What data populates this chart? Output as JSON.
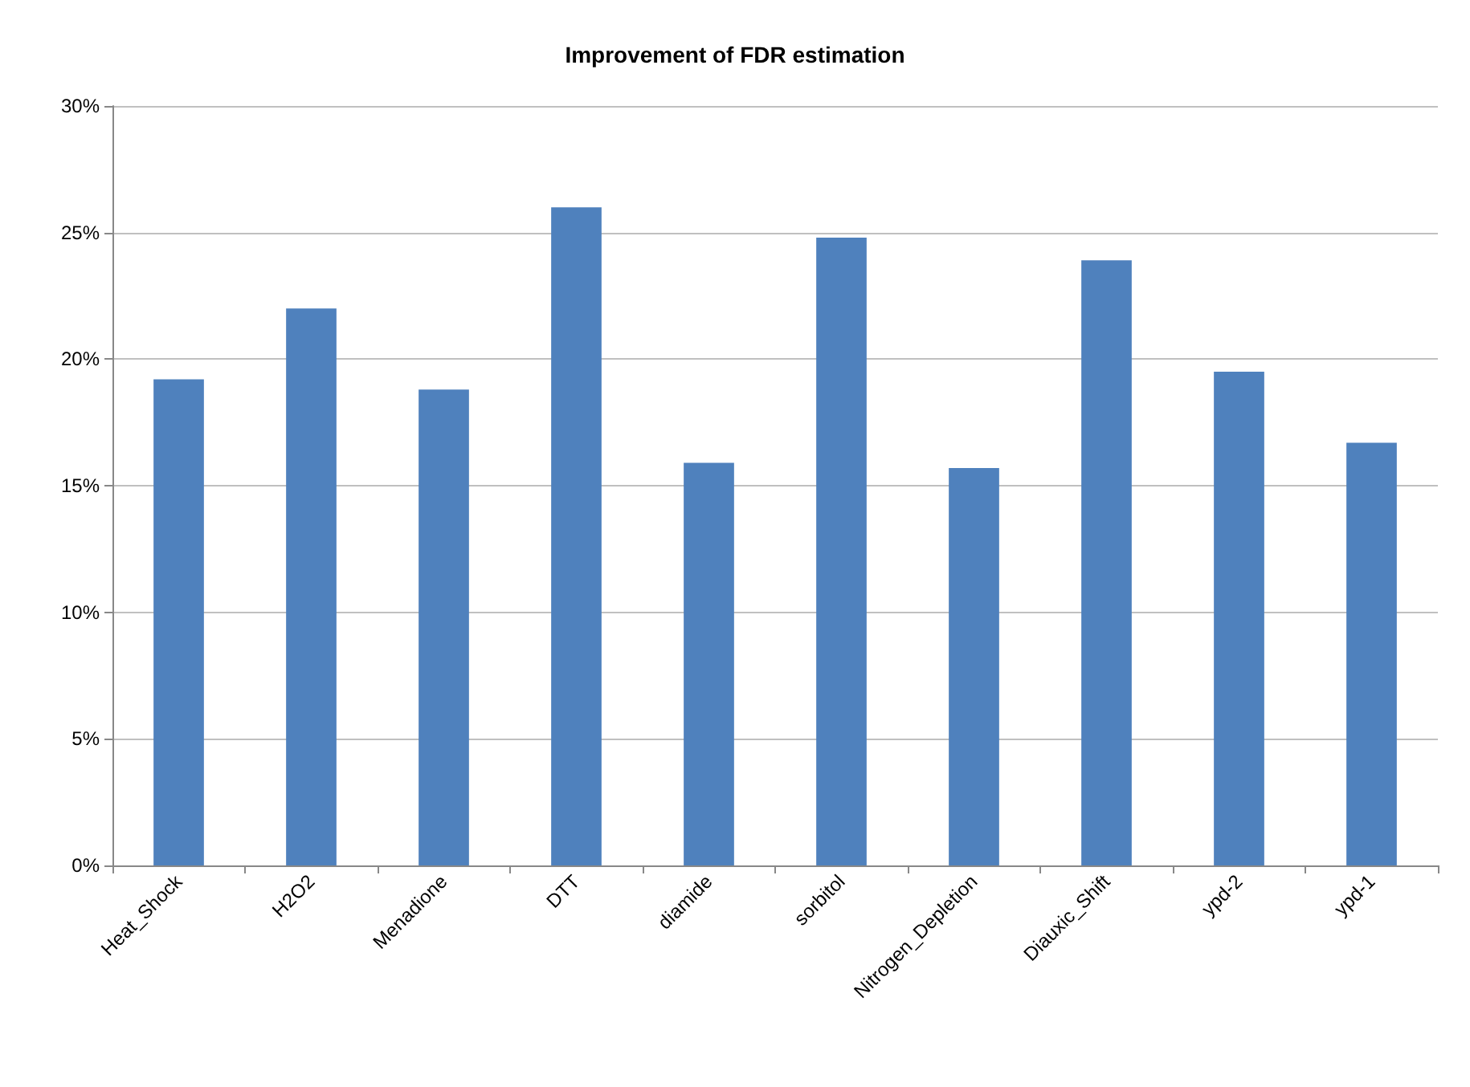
{
  "chart_data": {
    "type": "bar",
    "title": "Improvement of FDR estimation",
    "categories": [
      "Heat_Shock",
      "H2O2",
      "Menadione",
      "DTT",
      "diamide",
      "sorbitol",
      "Nitrogen_Depletion",
      "Diauxic_Shift",
      "ypd-2",
      "ypd-1"
    ],
    "values": [
      19.2,
      22.0,
      18.8,
      26.0,
      15.9,
      24.8,
      15.7,
      23.9,
      19.5,
      16.7
    ],
    "color": "#4f81bd",
    "ylim": [
      0,
      30
    ],
    "yticks": [
      {
        "value": 0,
        "label": "0%"
      },
      {
        "value": 5,
        "label": "5%"
      },
      {
        "value": 10,
        "label": "10%"
      },
      {
        "value": 15,
        "label": "15%"
      },
      {
        "value": 20,
        "label": "20%"
      },
      {
        "value": 25,
        "label": "25%"
      },
      {
        "value": 30,
        "label": "30%"
      }
    ],
    "grid": "y"
  }
}
